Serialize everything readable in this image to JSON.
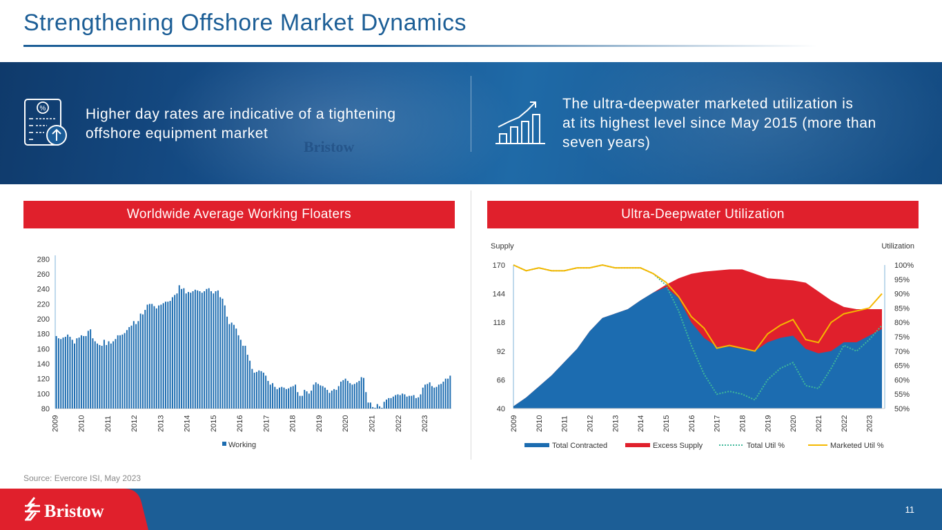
{
  "slide": {
    "title": "Strengthening Offshore Market Dynamics",
    "source": "Source: Evercore ISI, May 2023",
    "page_number": "11",
    "brand": "Bristow",
    "colors": {
      "title_blue": "#1c5e96",
      "header_red": "#e0202c",
      "footer_blue": "#1c5e96"
    }
  },
  "banner": {
    "watermark": "Bristow",
    "left_text": [
      "Higher day rates are indicative of a tightening",
      "offshore equipment market"
    ],
    "right_text": [
      "The ultra-deepwater marketed utilization is",
      "at its highest level since May 2015 (more than",
      "seven years)"
    ],
    "left_icon": "price-sheet-icon",
    "right_icon": "growth-chart-icon"
  },
  "left_panel": {
    "header": "Worldwide Average Working Floaters"
  },
  "right_panel": {
    "header": "Ultra-Deepwater Utilization"
  },
  "chart_data": [
    {
      "type": "bar",
      "title": "Worldwide Average Working Floaters",
      "series": [
        {
          "name": "Working",
          "color": "#1c6cb0",
          "values": [
            177,
            174,
            173,
            175,
            176,
            179,
            176,
            172,
            167,
            174,
            175,
            178,
            177,
            177,
            184,
            186,
            174,
            170,
            167,
            165,
            164,
            172,
            165,
            170,
            167,
            170,
            173,
            178,
            178,
            179,
            181,
            185,
            189,
            191,
            197,
            193,
            197,
            207,
            206,
            212,
            219,
            220,
            220,
            217,
            214,
            218,
            219,
            221,
            223,
            223,
            224,
            229,
            232,
            234,
            245,
            240,
            241,
            234,
            236,
            235,
            237,
            239,
            238,
            237,
            235,
            237,
            240,
            241,
            237,
            234,
            237,
            238,
            229,
            227,
            218,
            203,
            193,
            195,
            192,
            187,
            178,
            172,
            164,
            164,
            152,
            144,
            133,
            128,
            129,
            131,
            130,
            128,
            124,
            117,
            112,
            114,
            109,
            106,
            108,
            109,
            108,
            106,
            107,
            109,
            110,
            112,
            102,
            97,
            97,
            105,
            103,
            100,
            104,
            112,
            115,
            113,
            111,
            110,
            108,
            105,
            101,
            104,
            106,
            105,
            110,
            116,
            118,
            120,
            117,
            114,
            112,
            113,
            115,
            117,
            122,
            121,
            102,
            88,
            88,
            82,
            81,
            86,
            83,
            81,
            89,
            92,
            94,
            94,
            96,
            98,
            99,
            98,
            100,
            99,
            96,
            97,
            97,
            98,
            94,
            95,
            99,
            108,
            112,
            113,
            115,
            110,
            108,
            109,
            112,
            113,
            116,
            120,
            120,
            124
          ]
        }
      ],
      "x_labels": [
        "2009",
        "2010",
        "2011",
        "2012",
        "2013",
        "2014",
        "2015",
        "2016",
        "2017",
        "2018",
        "2019",
        "2020",
        "2021",
        "2022",
        "2023"
      ],
      "y_ticks": [
        80,
        100,
        120,
        140,
        160,
        180,
        200,
        220,
        240,
        260,
        280
      ],
      "ylim": [
        80,
        285
      ],
      "legend": "bottom"
    },
    {
      "type": "area",
      "title": "Ultra-Deepwater Utilization",
      "y_left_label": "Supply",
      "y_right_label": "Utilization",
      "x_labels": [
        "2009",
        "2010",
        "2011",
        "2012",
        "2013",
        "2014",
        "2015",
        "2016",
        "2017",
        "2018",
        "2019",
        "2020",
        "2021",
        "2022",
        "2023"
      ],
      "y_left_ticks": [
        "40",
        "66",
        "92",
        "118",
        "144",
        "170"
      ],
      "y_right_ticks": [
        "50%",
        "55%",
        "60%",
        "65%",
        "70%",
        "75%",
        "80%",
        "85%",
        "90%",
        "95%",
        "100%"
      ],
      "x_range": [
        2009,
        2023.5
      ],
      "y_left_range": [
        40,
        170
      ],
      "y_right_range": [
        50,
        100
      ],
      "series": [
        {
          "name": "Total Contracted",
          "style": "area",
          "color": "#1c6cb0",
          "x": [
            2009,
            2009.5,
            2010,
            2010.5,
            2011,
            2011.5,
            2012,
            2012.5,
            2013,
            2013.5,
            2014,
            2014.5,
            2015,
            2015.5,
            2016,
            2016.5,
            2017,
            2017.5,
            2018,
            2018.5,
            2019,
            2019.5,
            2020,
            2020.5,
            2021,
            2021.5,
            2022,
            2022.5,
            2023,
            2023.5
          ],
          "y": [
            42,
            50,
            60,
            70,
            82,
            94,
            110,
            122,
            126,
            130,
            138,
            145,
            150,
            140,
            118,
            104,
            96,
            96,
            94,
            92,
            100,
            104,
            106,
            94,
            90,
            92,
            100,
            100,
            106,
            112
          ]
        },
        {
          "name": "Excess Supply",
          "style": "area",
          "color": "#e0202c",
          "x": [
            2009,
            2009.5,
            2010,
            2010.5,
            2011,
            2011.5,
            2012,
            2012.5,
            2013,
            2013.5,
            2014,
            2014.5,
            2015,
            2015.5,
            2016,
            2016.5,
            2017,
            2017.5,
            2018,
            2018.5,
            2019,
            2019.5,
            2020,
            2020.5,
            2021,
            2021.5,
            2022,
            2022.5,
            2023,
            2023.5
          ],
          "y": [
            42,
            50,
            60,
            70,
            82,
            94,
            110,
            122,
            126,
            130,
            138,
            145,
            152,
            158,
            162,
            164,
            165,
            166,
            166,
            162,
            158,
            157,
            156,
            154,
            146,
            138,
            132,
            130,
            130,
            130
          ]
        },
        {
          "name": "Total Util %",
          "style": "dotted",
          "color": "#3fb99a",
          "x": [
            2009,
            2009.5,
            2010,
            2010.5,
            2011,
            2011.5,
            2012,
            2012.5,
            2013,
            2013.5,
            2014,
            2014.5,
            2015,
            2015.5,
            2016,
            2016.5,
            2017,
            2017.5,
            2018,
            2018.5,
            2019,
            2019.5,
            2020,
            2020.5,
            2021,
            2021.5,
            2022,
            2022.5,
            2023,
            2023.5
          ],
          "y": [
            100,
            98,
            99,
            98,
            98,
            99,
            99,
            100,
            99,
            99,
            99,
            97,
            93,
            84,
            72,
            62,
            55,
            56,
            55,
            53,
            60,
            64,
            66,
            58,
            57,
            64,
            72,
            70,
            74,
            79
          ]
        },
        {
          "name": "Marketed Util %",
          "style": "line",
          "color": "#f5b800",
          "x": [
            2009,
            2009.5,
            2010,
            2010.5,
            2011,
            2011.5,
            2012,
            2012.5,
            2013,
            2013.5,
            2014,
            2014.5,
            2015,
            2015.5,
            2016,
            2016.5,
            2017,
            2017.5,
            2018,
            2018.5,
            2019,
            2019.5,
            2020,
            2020.5,
            2021,
            2021.5,
            2022,
            2022.5,
            2023,
            2023.5
          ],
          "y": [
            100,
            98,
            99,
            98,
            98,
            99,
            99,
            100,
            99,
            99,
            99,
            97,
            94,
            89,
            82,
            78,
            71,
            72,
            71,
            70,
            76,
            79,
            81,
            74,
            73,
            80,
            83,
            84,
            85,
            90
          ]
        }
      ],
      "legend": "bottom"
    }
  ]
}
